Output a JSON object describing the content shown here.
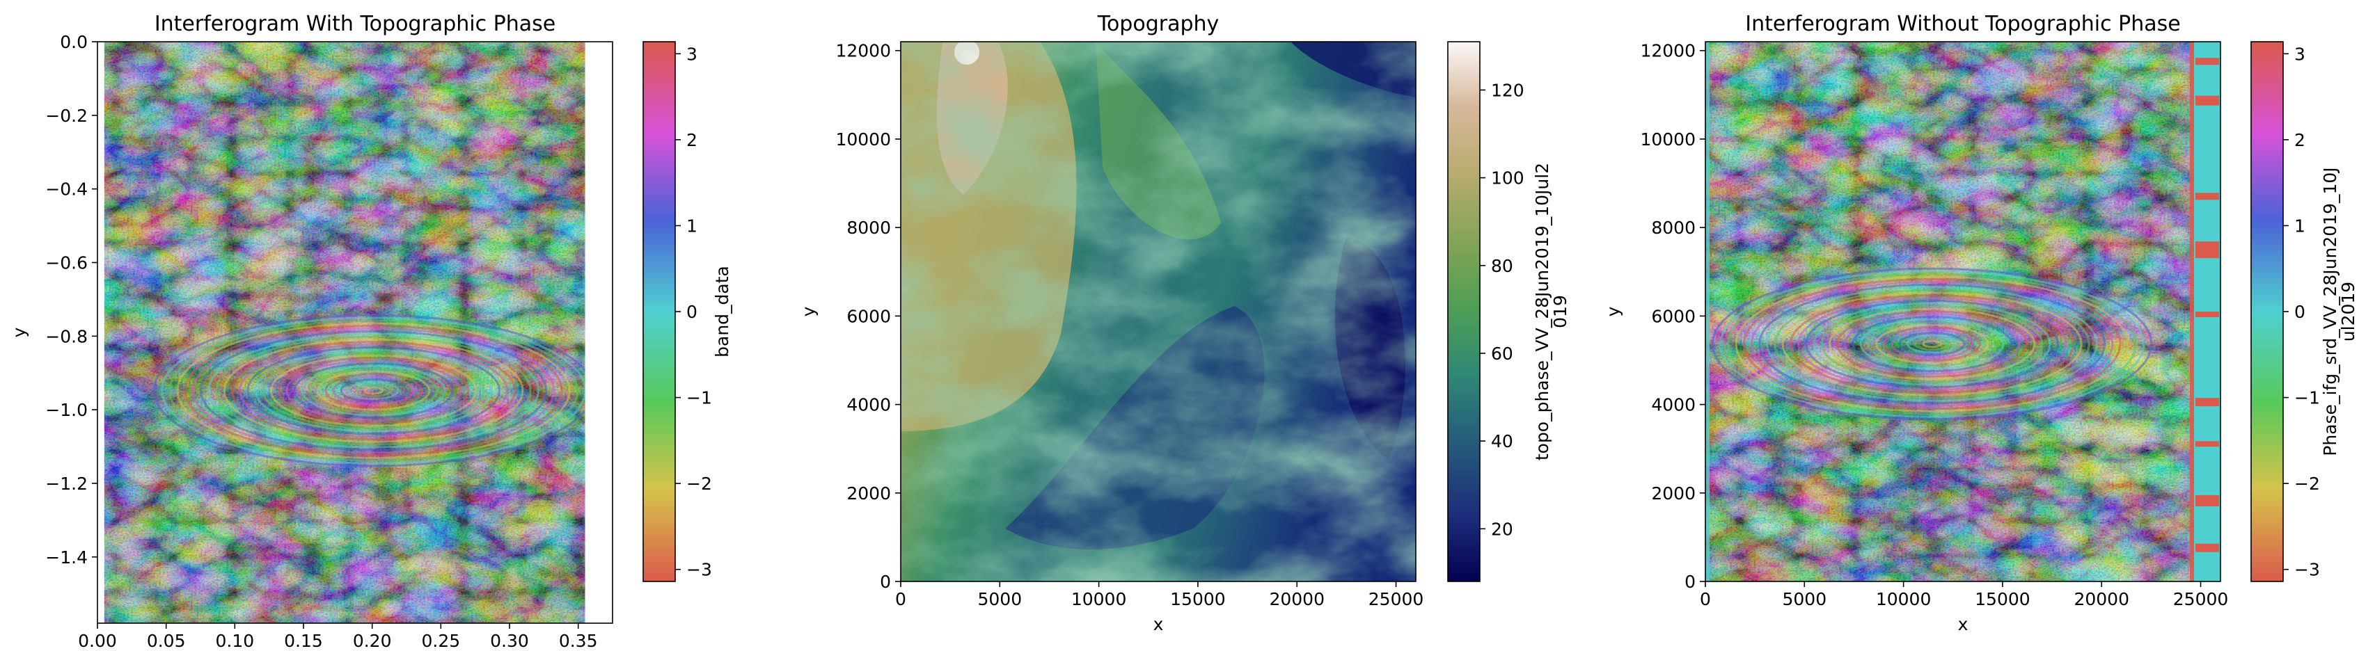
{
  "chart_data": [
    {
      "type": "heatmap",
      "title": "Interferogram With Topographic Phase",
      "xlabel": "x",
      "ylabel": "y",
      "xlim": [
        0.0,
        0.375
      ],
      "ylim": [
        -1.58,
        0.0
      ],
      "xticks": [
        "0.00",
        "0.05",
        "0.10",
        "0.15",
        "0.20",
        "0.25",
        "0.30",
        "0.35"
      ],
      "yticks": [
        "0.0",
        "−0.2",
        "−0.4",
        "−0.6",
        "−0.8",
        "−1.0",
        "−1.2",
        "−1.4"
      ],
      "data_extent_x": [
        0.005,
        0.355
      ],
      "colorbar": {
        "label": "band_data",
        "range": [
          -3.14,
          3.14
        ],
        "ticks": [
          "3",
          "2",
          "1",
          "0",
          "−1",
          "−2",
          "−3"
        ],
        "colormap": "cyclic-phase",
        "colors": [
          "#db5a4c",
          "#d6c34a",
          "#58c95a",
          "#4fcfd0",
          "#4c62d8",
          "#d752d8",
          "#db5a4c"
        ]
      }
    },
    {
      "type": "heatmap",
      "title": "Topography",
      "xlabel": "x",
      "ylabel": "y",
      "xlim": [
        0,
        26000
      ],
      "ylim": [
        0,
        12200
      ],
      "xticks": [
        "0",
        "5000",
        "10000",
        "15000",
        "20000",
        "25000"
      ],
      "yticks": [
        "0",
        "2000",
        "4000",
        "6000",
        "8000",
        "10000",
        "12000"
      ],
      "colorbar": {
        "label": "topo_phase_VV_28Jun2019_10Jul2019",
        "label_lines": [
          "topo_phase_VV_28Jun2019_10Jul2",
          "019"
        ],
        "range": [
          8,
          131
        ],
        "ticks": [
          "120",
          "100",
          "80",
          "60",
          "40",
          "20"
        ],
        "colormap": "gist_earth",
        "colors": [
          "#fbf8f8",
          "#d6b89b",
          "#b6ab6c",
          "#7fa454",
          "#4c9e56",
          "#2f8776",
          "#24597a",
          "#1d2c7b",
          "#030152"
        ]
      }
    },
    {
      "type": "heatmap",
      "title": "Interferogram Without Topographic Phase",
      "xlabel": "x",
      "ylabel": "y",
      "xlim": [
        0,
        26000
      ],
      "ylim": [
        0,
        12200
      ],
      "xticks": [
        "0",
        "5000",
        "10000",
        "15000",
        "20000",
        "25000"
      ],
      "yticks": [
        "0",
        "2000",
        "4000",
        "6000",
        "8000",
        "10000",
        "12000"
      ],
      "colorbar": {
        "label": "Phase_ifg_srd_VV_28Jun2019_10Jul2019",
        "label_lines": [
          "Phase_ifg_srd_VV_28Jun2019_10J",
          "ul2019"
        ],
        "range": [
          -3.14,
          3.14
        ],
        "ticks": [
          "3",
          "2",
          "1",
          "0",
          "−1",
          "−2",
          "−3"
        ],
        "colormap": "cyclic-phase",
        "colors": [
          "#db5a4c",
          "#d6c34a",
          "#58c95a",
          "#4fcfd0",
          "#4c62d8",
          "#d752d8",
          "#db5a4c"
        ]
      }
    }
  ]
}
